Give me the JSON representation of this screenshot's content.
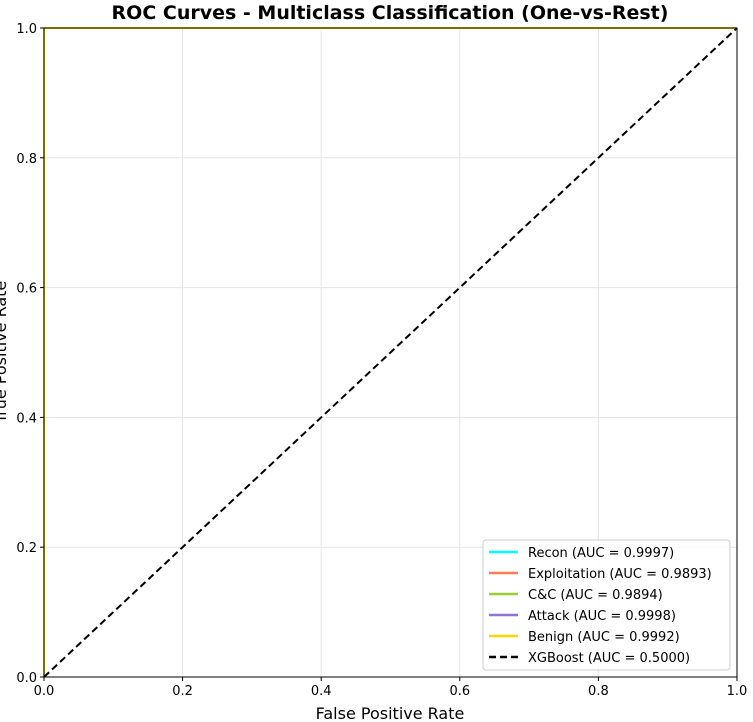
{
  "chart_data": {
    "type": "line",
    "title": "ROC Curves - Multiclass Classification (One-vs-Rest)",
    "xlabel": "False Positive Rate",
    "ylabel": "True Positive Rate",
    "xlim": [
      0.0,
      1.0
    ],
    "ylim": [
      0.0,
      1.0
    ],
    "x_ticks": [
      "0.0",
      "0.2",
      "0.4",
      "0.6",
      "0.8",
      "1.0"
    ],
    "y_ticks": [
      "0.0",
      "0.2",
      "0.4",
      "0.6",
      "0.8",
      "1.0"
    ],
    "grid": true,
    "legend_position": "lower right",
    "series": [
      {
        "name": "Recon (AUC = 0.9997)",
        "color": "#00ffff",
        "style": "solid",
        "x": [
          0.0,
          0.0,
          0.0,
          1.0
        ],
        "y": [
          0.0,
          0.99,
          1.0,
          1.0
        ]
      },
      {
        "name": "Exploitation (AUC = 0.9893)",
        "color": "#ff7f50",
        "style": "solid",
        "x": [
          0.0,
          0.0,
          0.0,
          1.0
        ],
        "y": [
          0.0,
          0.98,
          1.0,
          1.0
        ]
      },
      {
        "name": "C&C (AUC = 0.9894)",
        "color": "#9acd32",
        "style": "solid",
        "x": [
          0.0,
          0.0,
          0.0,
          1.0
        ],
        "y": [
          0.0,
          0.98,
          1.0,
          1.0
        ]
      },
      {
        "name": "Attack (AUC = 0.9998)",
        "color": "#9370db",
        "style": "solid",
        "x": [
          0.0,
          0.0,
          0.0,
          1.0
        ],
        "y": [
          0.0,
          0.99,
          1.0,
          1.0
        ]
      },
      {
        "name": "Benign (AUC = 0.9992)",
        "color": "#ffd700",
        "style": "solid",
        "x": [
          0.0,
          0.0,
          0.0,
          1.0
        ],
        "y": [
          0.0,
          0.99,
          1.0,
          1.0
        ]
      },
      {
        "name": "XGBoost (AUC = 0.5000)",
        "color": "#000000",
        "style": "dashed",
        "x": [
          0.0,
          1.0
        ],
        "y": [
          0.0,
          1.0
        ]
      }
    ]
  }
}
